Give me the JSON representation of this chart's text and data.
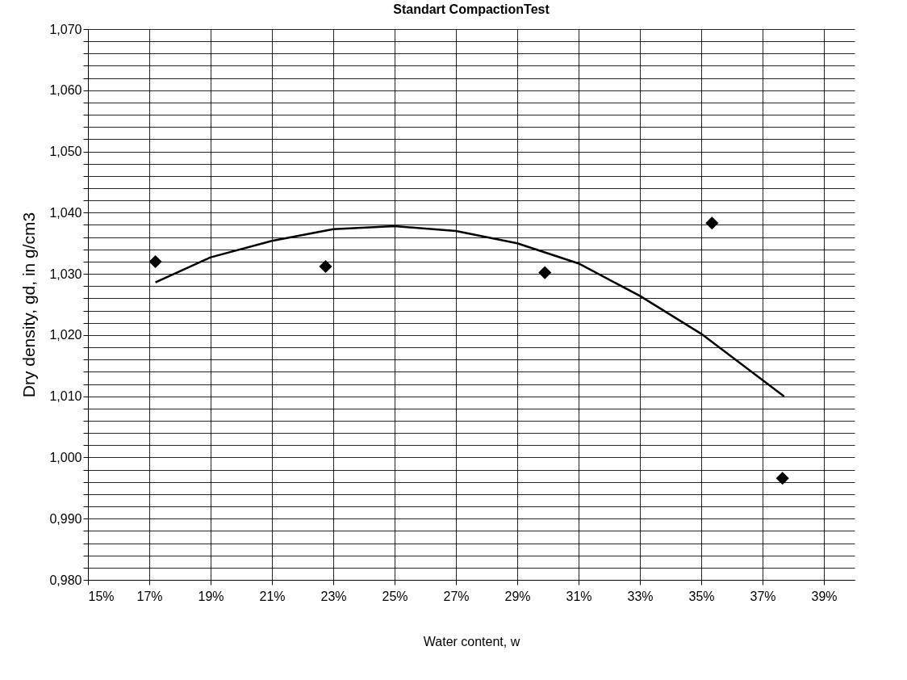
{
  "chart_data": {
    "type": "scatter",
    "title": "Standart CompactionTest",
    "xlabel": "Water content, w",
    "ylabel": "Dry density, gd, in g/cm3",
    "xlim": [
      15,
      40
    ],
    "xticks": [
      {
        "value": 15,
        "label": "15%"
      },
      {
        "value": 17,
        "label": "17%"
      },
      {
        "value": 19,
        "label": "19%"
      },
      {
        "value": 21,
        "label": "21%"
      },
      {
        "value": 23,
        "label": "23%"
      },
      {
        "value": 25,
        "label": "25%"
      },
      {
        "value": 27,
        "label": "27%"
      },
      {
        "value": 29,
        "label": "29%"
      },
      {
        "value": 31,
        "label": "31%"
      },
      {
        "value": 33,
        "label": "33%"
      },
      {
        "value": 35,
        "label": "35%"
      },
      {
        "value": 37,
        "label": "37%"
      },
      {
        "value": 39,
        "label": "39%"
      }
    ],
    "ylim": [
      0.98,
      1.07
    ],
    "yticks": [
      {
        "value": 0.98,
        "label": "0,980"
      },
      {
        "value": 0.982,
        "label": null
      },
      {
        "value": 0.984,
        "label": null
      },
      {
        "value": 0.986,
        "label": null
      },
      {
        "value": 0.988,
        "label": null
      },
      {
        "value": 0.99,
        "label": "0,990"
      },
      {
        "value": 0.992,
        "label": null
      },
      {
        "value": 0.994,
        "label": null
      },
      {
        "value": 0.996,
        "label": null
      },
      {
        "value": 0.998,
        "label": null
      },
      {
        "value": 1.0,
        "label": "1,000"
      },
      {
        "value": 1.002,
        "label": null
      },
      {
        "value": 1.004,
        "label": null
      },
      {
        "value": 1.006,
        "label": null
      },
      {
        "value": 1.008,
        "label": null
      },
      {
        "value": 1.01,
        "label": "1,010"
      },
      {
        "value": 1.012,
        "label": null
      },
      {
        "value": 1.014,
        "label": null
      },
      {
        "value": 1.016,
        "label": null
      },
      {
        "value": 1.018,
        "label": null
      },
      {
        "value": 1.02,
        "label": "1,020"
      },
      {
        "value": 1.022,
        "label": null
      },
      {
        "value": 1.024,
        "label": null
      },
      {
        "value": 1.026,
        "label": null
      },
      {
        "value": 1.028,
        "label": null
      },
      {
        "value": 1.03,
        "label": "1,030"
      },
      {
        "value": 1.032,
        "label": null
      },
      {
        "value": 1.034,
        "label": null
      },
      {
        "value": 1.036,
        "label": null
      },
      {
        "value": 1.038,
        "label": null
      },
      {
        "value": 1.04,
        "label": "1,040"
      },
      {
        "value": 1.042,
        "label": null
      },
      {
        "value": 1.044,
        "label": null
      },
      {
        "value": 1.046,
        "label": null
      },
      {
        "value": 1.048,
        "label": null
      },
      {
        "value": 1.05,
        "label": "1,050"
      },
      {
        "value": 1.052,
        "label": null
      },
      {
        "value": 1.054,
        "label": null
      },
      {
        "value": 1.056,
        "label": null
      },
      {
        "value": 1.058,
        "label": null
      },
      {
        "value": 1.06,
        "label": "1,060"
      },
      {
        "value": 1.062,
        "label": null
      },
      {
        "value": 1.064,
        "label": null
      },
      {
        "value": 1.066,
        "label": null
      },
      {
        "value": 1.068,
        "label": null
      },
      {
        "value": 1.07,
        "label": "1,070"
      }
    ],
    "grid": true,
    "series": [
      {
        "color": "#000000",
        "marker": "diamond",
        "x": [
          17.2,
          22.75,
          29.9,
          35.35,
          37.65
        ],
        "values": [
          1.032,
          1.0312,
          1.0302,
          1.0383,
          0.9966
        ]
      },
      {
        "type": "line",
        "color": "#000000",
        "marker": "none",
        "line_style": "solid",
        "x": [
          17.2,
          19,
          21,
          23,
          25,
          27,
          29,
          31,
          33,
          35,
          37.7
        ],
        "values": [
          1.0286,
          1.0327,
          1.0354,
          1.0373,
          1.0378,
          1.037,
          1.035,
          1.0317,
          1.0264,
          1.0202,
          1.01
        ]
      }
    ]
  }
}
